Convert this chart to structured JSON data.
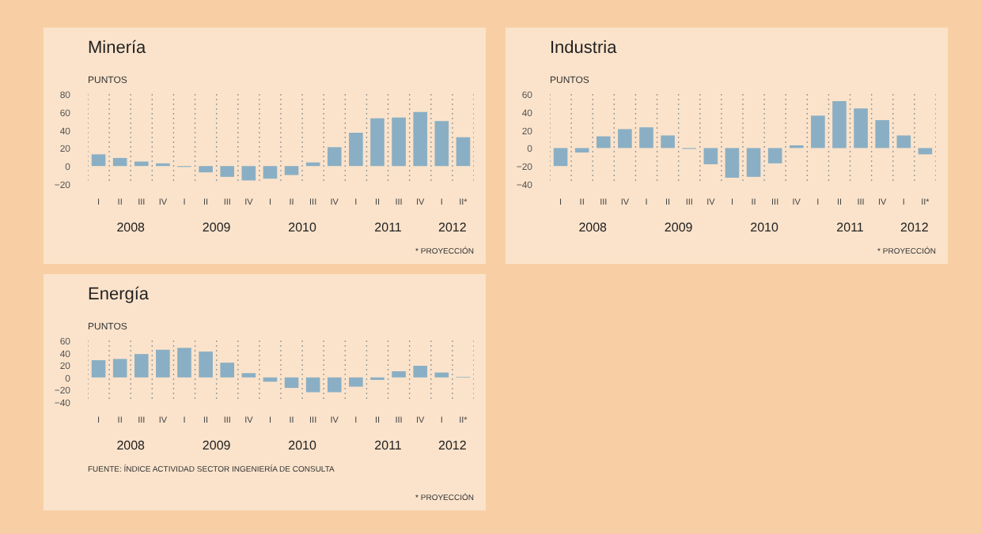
{
  "chart_data": [
    {
      "type": "bar",
      "title": "Minería",
      "subtitle": "PUNTOS",
      "categories": [
        "I",
        "II",
        "III",
        "IV",
        "I",
        "II",
        "III",
        "IV",
        "I",
        "II",
        "III",
        "IV",
        "I",
        "II",
        "III",
        "IV",
        "I",
        "II*"
      ],
      "values": [
        13,
        9,
        5,
        3,
        -1,
        -7,
        -12,
        -16,
        -14,
        -10,
        4,
        21,
        37,
        53,
        54,
        60,
        50,
        32
      ],
      "color": "#8aafc4",
      "ylim": [
        -20,
        80
      ],
      "yticks": [
        -20,
        0,
        20,
        40,
        60,
        80
      ],
      "grid": "x",
      "annotations": [
        "2008",
        "2009",
        "2010",
        "2011",
        "2012",
        "* PROYECCIÓN"
      ]
    },
    {
      "type": "bar",
      "title": "Industria",
      "subtitle": "PUNTOS",
      "categories": [
        "I",
        "II",
        "III",
        "IV",
        "I",
        "II",
        "III",
        "IV",
        "I",
        "II",
        "III",
        "IV",
        "I",
        "II",
        "III",
        "IV",
        "I",
        "II*"
      ],
      "values": [
        -20,
        -5,
        13,
        21,
        23,
        14,
        -1,
        -18,
        -33,
        -32,
        -17,
        3,
        36,
        52,
        44,
        31,
        14,
        -7
      ],
      "color": "#8aafc4",
      "ylim": [
        -40,
        60
      ],
      "yticks": [
        -40,
        -20,
        0,
        20,
        40,
        60
      ],
      "grid": "x",
      "annotations": [
        "2008",
        "2009",
        "2010",
        "2011",
        "2012",
        "* PROYECCIÓN"
      ]
    },
    {
      "type": "bar",
      "title": "Energía",
      "subtitle": "PUNTOS",
      "categories": [
        "I",
        "II",
        "III",
        "IV",
        "I",
        "II",
        "III",
        "IV",
        "I",
        "II",
        "III",
        "IV",
        "I",
        "II",
        "III",
        "IV",
        "I",
        "II*"
      ],
      "values": [
        28,
        30,
        38,
        45,
        48,
        42,
        24,
        7,
        -7,
        -17,
        -24,
        -24,
        -15,
        -4,
        10,
        19,
        8,
        1
      ],
      "color": "#8aafc4",
      "ylim": [
        -40,
        60
      ],
      "yticks": [
        -40,
        -20,
        0,
        20,
        40,
        60
      ],
      "grid": "x",
      "annotations": [
        "2008",
        "2009",
        "2010",
        "2011",
        "2012",
        "FUENTE: ÍNDICE ACTIVIDAD SECTOR INGENIERÍA DE CONSULTA",
        "* PROYECCIÓN"
      ]
    }
  ]
}
